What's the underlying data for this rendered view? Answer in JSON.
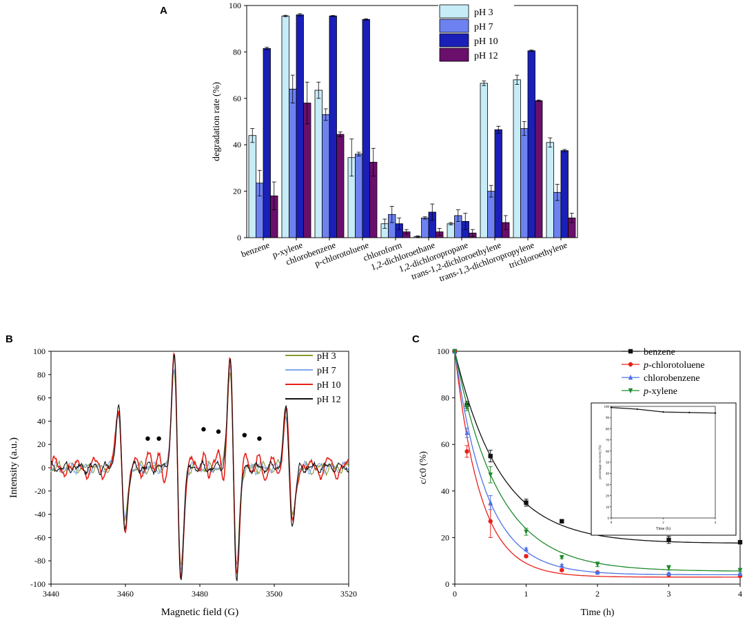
{
  "chart_data": [
    {
      "panel": "A",
      "type": "bar",
      "ylabel": "degradation rate (%)",
      "xlabel": "",
      "ylim": [
        0,
        100
      ],
      "yticks": [
        0,
        20,
        40,
        60,
        80,
        100
      ],
      "legend_position": "top-right",
      "categories": [
        "benzene",
        "p-xylene",
        "chlorobenzene",
        "p-chlorotoluene",
        "chloroform",
        "1,2-dichloroethane",
        "1,2-dichloropropane",
        "trans-1,2-dichloroethylene",
        "trans-1,3-dichloropropylene",
        "trichloroethylene"
      ],
      "series": [
        {
          "name": "pH 3",
          "color": "#c6ecf8",
          "values": [
            44,
            95.5,
            63.5,
            34.5,
            6,
            0.5,
            6,
            66.5,
            68,
            41
          ],
          "errors": [
            3,
            0.3,
            3.5,
            8,
            2,
            0.3,
            0.5,
            1,
            2,
            2
          ]
        },
        {
          "name": "pH 7",
          "color": "#6d82f0",
          "values": [
            23.5,
            64,
            53,
            36,
            10,
            8.5,
            9.5,
            20,
            47,
            19.5
          ],
          "errors": [
            5.5,
            6,
            2.5,
            0.8,
            3.5,
            0.5,
            2.5,
            2.5,
            3,
            3.5
          ]
        },
        {
          "name": "pH 10",
          "color": "#1a1fb8",
          "values": [
            81.5,
            96,
            95.5,
            94,
            6,
            11,
            7,
            46.5,
            80.5,
            37.5
          ],
          "errors": [
            0.5,
            0.5,
            0.2,
            0.3,
            2.5,
            3.5,
            3.5,
            1.5,
            0.3,
            0.5
          ]
        },
        {
          "name": "pH 12",
          "color": "#6a0f6c",
          "values": [
            18,
            58,
            44.5,
            32.5,
            2.5,
            2.5,
            2,
            6.5,
            59,
            8.5
          ],
          "errors": [
            6,
            9,
            1,
            6,
            1,
            1.5,
            1.5,
            3,
            0.3,
            2
          ]
        }
      ]
    },
    {
      "panel": "B",
      "type": "line",
      "xlabel": "Magnetic field (G)",
      "ylabel": "Intensity (a.u.)",
      "xlim": [
        3440,
        3520
      ],
      "ylim": [
        -100,
        100
      ],
      "xticks": [
        3440,
        3460,
        3480,
        3500,
        3520
      ],
      "yticks": [
        -100,
        -80,
        -60,
        -40,
        -20,
        0,
        20,
        40,
        60,
        80,
        100
      ],
      "legend_position": "top-right",
      "peaks": [
        {
          "x": 3459,
          "top": 50,
          "bottom": -48
        },
        {
          "x": 3474,
          "top": 96,
          "bottom": -86
        },
        {
          "x": 3489,
          "top": 90,
          "bottom": -88
        },
        {
          "x": 3504,
          "top": 48,
          "bottom": -45
        }
      ],
      "marker_points": [
        {
          "x": 3466,
          "y": 25
        },
        {
          "x": 3469,
          "y": 25
        },
        {
          "x": 3481,
          "y": 33
        },
        {
          "x": 3485,
          "y": 31
        },
        {
          "x": 3492,
          "y": 28
        },
        {
          "x": 3496,
          "y": 25
        }
      ],
      "series": [
        {
          "name": "pH 3",
          "color": "#8a9a2a"
        },
        {
          "name": "pH 7",
          "color": "#7fa7ee"
        },
        {
          "name": "pH 10",
          "color": "#e8201a"
        },
        {
          "name": "pH 12",
          "color": "#111111"
        }
      ]
    },
    {
      "panel": "C",
      "type": "scatter",
      "xlabel": "Time (h)",
      "ylabel": "c/c0 (%)",
      "xlim": [
        0,
        4
      ],
      "ylim": [
        0,
        100
      ],
      "xticks": [
        0,
        1,
        2,
        3,
        4
      ],
      "yticks": [
        0,
        20,
        40,
        60,
        80,
        100
      ],
      "legend_position": "top-right",
      "x": [
        0,
        0.17,
        0.5,
        1,
        1.5,
        2,
        3,
        4
      ],
      "series": [
        {
          "name": "benzene",
          "prefix": "",
          "suffix": "benzene",
          "color": "#111111",
          "marker": "square",
          "values": [
            100,
            77,
            55,
            35,
            27,
            23,
            19,
            18
          ],
          "errors": [
            0,
            1.5,
            2.5,
            1.5,
            0.5,
            2,
            1.5,
            0.5
          ]
        },
        {
          "name": "p-chlorotoluene",
          "prefix": "p",
          "suffix": "-chlorotoluene",
          "color": "#e8201a",
          "marker": "circle",
          "values": [
            100,
            57,
            27,
            12,
            6,
            5,
            4,
            3.5
          ],
          "errors": [
            0,
            2.5,
            7,
            0.5,
            0.5,
            0.3,
            0.3,
            0.3
          ]
        },
        {
          "name": "chlorobenzene",
          "prefix": "",
          "suffix": "chlorobenzene",
          "color": "#4c72e8",
          "marker": "triangle-up",
          "values": [
            100,
            65,
            35,
            15,
            8,
            5,
            4.5,
            4.5
          ],
          "errors": [
            0,
            2,
            3,
            0.5,
            0.5,
            0.3,
            0.3,
            0.3
          ]
        },
        {
          "name": "p-xylene",
          "prefix": "p",
          "suffix": "-xylene",
          "color": "#1e8a2c",
          "marker": "triangle-down",
          "values": [
            100,
            76,
            47,
            22.5,
            11.5,
            8.5,
            7,
            6
          ],
          "errors": [
            0,
            1.5,
            3.5,
            1.5,
            0.5,
            1,
            1,
            0.5
          ]
        }
      ],
      "inset": {
        "ylabel": "percentage recovery (%)",
        "xlabel": "Time (h)",
        "yticks": [
          0,
          10,
          20,
          30,
          40,
          50,
          60,
          70,
          80,
          90,
          100
        ],
        "xticks": [
          0,
          2,
          4
        ],
        "x": [
          0,
          1,
          2,
          3,
          4
        ],
        "values": [
          99,
          97.5,
          95,
          94.5,
          94
        ]
      }
    }
  ]
}
